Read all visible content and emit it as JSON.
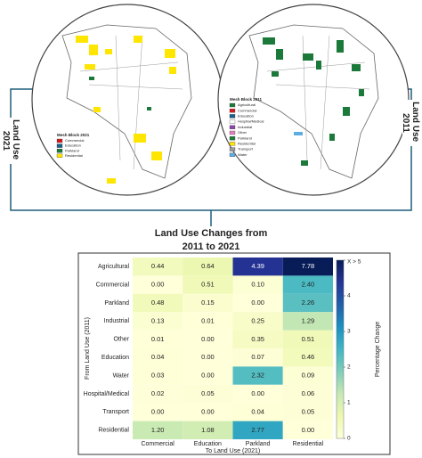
{
  "maps": [
    {
      "legend_title": "Mesh Block 2021",
      "legend_items": [
        {
          "name": "Commercial",
          "color": "#d7191c"
        },
        {
          "name": "Education",
          "color": "#1a5e8a"
        },
        {
          "name": "Parkland",
          "color": "#1b7a3a"
        },
        {
          "name": "Residential",
          "color": "#ffe600"
        }
      ]
    },
    {
      "legend_title": "Mesh Block 2011",
      "legend_items": [
        {
          "name": "Agricultural",
          "color": "#1b7a3a"
        },
        {
          "name": "Commercial",
          "color": "#d7191c"
        },
        {
          "name": "Education",
          "color": "#1a5e8a"
        },
        {
          "name": "Hospital/Medical",
          "color": "#ffffff"
        },
        {
          "name": "Industrial",
          "color": "#8e44ad"
        },
        {
          "name": "Other",
          "color": "#e67ec0"
        },
        {
          "name": "Parkland",
          "color": "#1b7a3a"
        },
        {
          "name": "Residential",
          "color": "#ffe600"
        },
        {
          "name": "Transport",
          "color": "#999999"
        },
        {
          "name": "Water",
          "color": "#5dade2"
        }
      ]
    }
  ],
  "side_labels": [
    {
      "line1": "Land Use",
      "line2": "2021"
    },
    {
      "line1": "Land Use",
      "line2": "2011"
    }
  ],
  "figure_title": {
    "line1": "Land Use Changes from",
    "line2": "2011 to 2021"
  },
  "chart_data": {
    "type": "heatmap",
    "rows": [
      "Agricultural",
      "Commercial",
      "Parkland",
      "Industrial",
      "Other",
      "Education",
      "Water",
      "Hospital/Medical",
      "Transport",
      "Residential"
    ],
    "columns": [
      "Commercial",
      "Education",
      "Parkland",
      "Residential"
    ],
    "values": [
      [
        0.44,
        0.64,
        4.39,
        7.78
      ],
      [
        0,
        0.51,
        0.1,
        2.4
      ],
      [
        0.48,
        0.15,
        0,
        2.26
      ],
      [
        0.13,
        0.01,
        0.25,
        1.29
      ],
      [
        0.01,
        0,
        0.35,
        0.51
      ],
      [
        0.04,
        0,
        0.07,
        0.46
      ],
      [
        0.03,
        0,
        2.32,
        0.09
      ],
      [
        0.02,
        0.05,
        0,
        0.06
      ],
      [
        0,
        0,
        0.04,
        0.05
      ],
      [
        1.2,
        1.08,
        2.77,
        0
      ]
    ],
    "value_labels": [
      [
        "0.44",
        "0.64",
        "4.39",
        "7.78"
      ],
      [
        "0.00",
        "0.51",
        "0.10",
        "2.40"
      ],
      [
        "0.48",
        "0.15",
        "0.00",
        "2.26"
      ],
      [
        "0.13",
        "0.01",
        "0.25",
        "1.29"
      ],
      [
        "0.01",
        "0.00",
        "0.35",
        "0.51"
      ],
      [
        "0.04",
        "0.00",
        "0.07",
        "0.46"
      ],
      [
        "0.03",
        "0.00",
        "2.32",
        "0.09"
      ],
      [
        "0.02",
        "0.05",
        "0.00",
        "0.06"
      ],
      [
        "0.00",
        "0.00",
        "0.04",
        "0.05"
      ],
      [
        "1.20",
        "1.08",
        "2.77",
        "0.00"
      ]
    ],
    "xlabel": "To Land Use (2021)",
    "ylabel": "From Land Use (2011)",
    "colorbar_label": "Percentage Change",
    "zlim": [
      0,
      5
    ],
    "zticks": [
      0,
      1,
      2,
      3,
      4,
      {
        "value": 5,
        "label": "X > 5"
      }
    ],
    "colorscale": [
      "#ffffd9",
      "#edf8b1",
      "#c7e9b4",
      "#7fcdbb",
      "#41b6c4",
      "#1d91c0",
      "#225ea8",
      "#253494",
      "#081d58"
    ]
  }
}
